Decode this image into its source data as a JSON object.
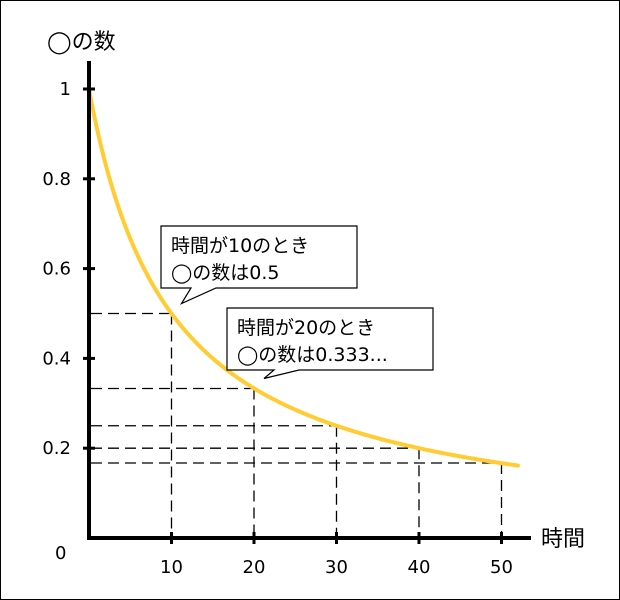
{
  "chart_data": {
    "type": "line",
    "xlabel": "時間",
    "ylabel": "◯の数",
    "xlim": [
      0,
      52
    ],
    "ylim": [
      0,
      1
    ],
    "x_ticks": [
      10,
      20,
      30,
      40,
      50
    ],
    "y_ticks": [
      0.2,
      0.4,
      0.6,
      0.8,
      1
    ],
    "y_tick_labels": [
      "0.2",
      "0.4",
      "0.6",
      "0.8",
      "1"
    ],
    "origin_label": "0",
    "curve_color": "#ffcc33",
    "grid": false,
    "series": [
      {
        "name": "",
        "function": "y = 1 / (1 + x/10)",
        "x_range": [
          0,
          52
        ]
      }
    ],
    "reference_points": [
      {
        "x": 10,
        "y": 0.5
      },
      {
        "x": 20,
        "y": 0.333
      },
      {
        "x": 30,
        "y": 0.25
      },
      {
        "x": 40,
        "y": 0.2
      },
      {
        "x": 50,
        "y": 0.167
      }
    ],
    "annotations": [
      {
        "line1": "時間が10のとき",
        "line2": "◯の数は0.5",
        "target": [
          10,
          0.5
        ]
      },
      {
        "line1": "時間が20のとき",
        "line2": "◯の数は0.333...",
        "target": [
          20,
          0.333
        ]
      }
    ]
  }
}
